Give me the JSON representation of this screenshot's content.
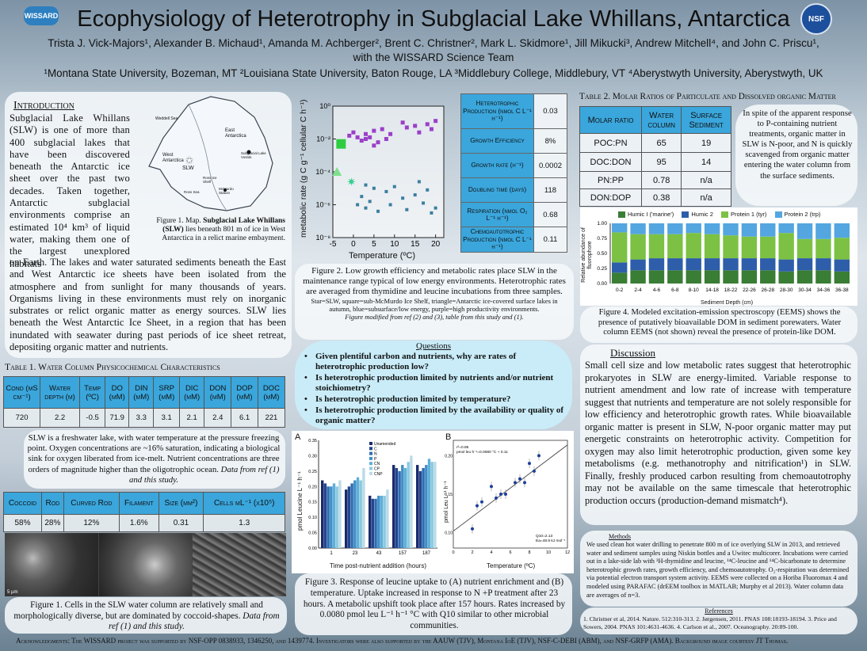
{
  "header": {
    "title": "Ecophysiology of Heterotrophy in Subglacial Lake Whillans, Antarctica",
    "authors_line1": "Trista J. Vick-Majors¹, Alexander B. Michaud¹, Amanda M. Achberger², Brent C. Christner², Mark L. Skidmore¹, Jill Mikucki³, Andrew Mitchell⁴, and John C. Priscu¹,",
    "authors_line2": "with the WISSARD Science Team",
    "affiliations": "¹Montana State University, Bozeman, MT ²Louisiana State University, Baton Rouge, LA ³Middlebury College, Middlebury, VT ⁴Aberystwyth University, Aberystwyth, UK",
    "logo_left": "WISSARD",
    "logo_right": "NSF"
  },
  "intro": {
    "heading": "Introduction",
    "p1": "Subglacial Lake Whillans (SLW) is one of more than 400 subglacial lakes that have been discovered beneath the Antarctic ice sheet over the past two decades. Taken together, Antarctic subglacial environments comprise an estimated 10⁴ km³ of liquid water, making them one of the largest unexplored habitats",
    "p2": "on Earth. The lakes and water saturated sediments beneath the East and West Antarctic ice sheets have been isolated from the atmosphere and from sunlight for many thousands of years. Organisms living in these environments must rely on inorganic substrates or relict organic matter as energy sources. SLW lies beneath the West Antarctic Ice Sheet, in a region that has been inundated with seawater during past periods of ice sheet retreat, depositing organic matter and nutrients."
  },
  "map": {
    "labels": [
      "Weddell Sea",
      "East Antarctica",
      "West Antarctica",
      "SLW",
      "Subglacial Lake Vostok",
      "Ross Ice Shelf",
      "McMurdo Station",
      "Ross Sea"
    ],
    "caption_prefix": "Figure 1. Map. ",
    "caption_bold": "Subglacial Lake Whillans (SLW)",
    "caption_rest": " lies beneath 801 m of ice in West Antarctica in a relict marine embayment."
  },
  "table1": {
    "title": "Table 1. Water Column Physicochemical Characteristics",
    "headers": [
      "Cond (µS cm⁻¹)",
      "Water depth (m)",
      "Temp (ºC)",
      "DO (µM)",
      "DIN (µM)",
      "SRP (µM)",
      "DIC (mM)",
      "DON (µM)",
      "DOP (µM)",
      "DOC (µM)"
    ],
    "values": [
      "720",
      "2.2",
      "-0.5",
      "71.9",
      "3.3",
      "3.1",
      "2.1",
      "2.4",
      "6.1",
      "221"
    ],
    "note": "SLW is a freshwater lake, with water temperature at the pressure freezing point. Oxygen concentrations are ~16% saturation, indicating a biological sink for oxygen liberated from ice-melt. Nutrient concentrations are three orders of magnitude higher than the oligotrophic ocean.",
    "note_italic": "Data from ref (1) and this study."
  },
  "cells_table": {
    "headers": [
      "Coccoid",
      "Rod",
      "Curved Rod",
      "Filament",
      "Size (µm²)",
      "Cells mL⁻¹ (x10⁵)"
    ],
    "values": [
      "58%",
      "28%",
      "12%",
      "1.6%",
      "0.31",
      "1.3"
    ]
  },
  "micrograph": {
    "scale": "5 µm",
    "caption": "Figure 1. Cells in the SLW water column are relatively small and morphologically diverse, but are dominated by coccoid-shapes.",
    "caption_italic": "Data from ref (1) and this study."
  },
  "fig2": {
    "ylabel": "metabolic rate (g C g⁻¹ cellular C h⁻¹)",
    "xlabel": "Temperature (ºC)",
    "yticks": [
      "10⁰",
      "10⁻²",
      "10⁻⁴",
      "10⁻⁶",
      "10⁻⁸"
    ],
    "xticks": [
      "-5",
      "0",
      "5",
      "10",
      "15",
      "20"
    ],
    "caption": "Figure 2. Low growth efficiency and metabolic rates place SLW in the maintenance range typical of low energy environments. Heterotrophic rates are averaged from thymidine and leucine incubations from three samples.",
    "caption_small": "Star=SLW, square=sub-McMurdo Ice Shelf, triangle=Antarctic ice-covered surface lakes in autumn, blue=subsurface/low energy, purple=high productivity environments.",
    "caption_italic": "Figure modified from ref (2) and (3), table from this study and (1)."
  },
  "rates": [
    {
      "label": "Heterotrophic Production (nmol C L⁻¹ h⁻¹)",
      "value": "0.03"
    },
    {
      "label": "Growth Efficiency",
      "value": "8%"
    },
    {
      "label": "Growth rate (h⁻¹)",
      "value": "0.0002"
    },
    {
      "label": "Doubling time (days)",
      "value": "118"
    },
    {
      "label": "Respiration (nmol O₂ L⁻¹ h⁻¹)",
      "value": "0.68"
    },
    {
      "label": "Chemoautotrophic Production (nmol C L⁻¹ h⁻¹)",
      "value": "0.11"
    }
  ],
  "questions": {
    "heading": "Questions",
    "items": [
      "Given plentiful carbon and nutrients, why are rates of heterotrophic production low?",
      "Is heterotrophic production limited by nutrients and/or nutrient stoichiometry?",
      "Is heterotrophic production limited by temperature?",
      "Is heterotrophic production limited by the availability or quality of organic matter?"
    ]
  },
  "fig3": {
    "a_label": "A",
    "b_label": "B",
    "a_ylabel": "pmol Leucine L⁻¹ h⁻¹",
    "a_xlabel": "Time post-nutrient addition (hours)",
    "a_legend": [
      "Unamended",
      "C",
      "N",
      "P",
      "CN",
      "CP",
      "CNP"
    ],
    "a_xticks": [
      "1",
      "23",
      "43",
      "157",
      "187"
    ],
    "a_yticks": [
      "0.00",
      "0.05",
      "0.10",
      "0.15",
      "0.20",
      "0.25",
      "0.30",
      "0.35"
    ],
    "b_ylabel": "pmol Leu L⁻¹ h⁻¹",
    "b_xlabel": "Temperature (ºC)",
    "b_yticks": [
      "0.10",
      "0.15",
      "0.20"
    ],
    "b_xticks": [
      "0",
      "2",
      "4",
      "6",
      "8",
      "10",
      "12"
    ],
    "b_ann1": "r²=0.85",
    "b_ann2": "pmol leu h⁻¹=0.0080 °C + 0.11",
    "b_ann3": "Q10=2.13",
    "b_ann4": "Ea=48.9 kJ mol⁻¹",
    "caption": "Figure 3. Response of leucine uptake to (A) nutrient enrichment and (B) temperature. Uptake increased in response to N +P treatment after 23 hours. A metabolic upshift took place after 157 hours. Rates increased by 0.0080 pmol leu L⁻¹ h⁻¹ °C with Q10 similar to other microbial communities."
  },
  "table2": {
    "title": "Table 2. Molar Ratios of Particulate and Dissolved organic Matter",
    "headers": [
      "Molar ratio",
      "Water column",
      "Surface Sediment"
    ],
    "rows": [
      [
        "POC:PN",
        "65",
        "19"
      ],
      [
        "DOC:DON",
        "95",
        "14"
      ],
      [
        "PN:PP",
        "0.78",
        "n/a"
      ],
      [
        "DON:DOP",
        "0.38",
        "n/a"
      ]
    ],
    "side_note": "In spite of the apparent response to P-containing nutrient treatments, organic matter in SLW is N-poor, and N is quickly scavenged from organic matter entering the water column from the surface sediments."
  },
  "fig4": {
    "legend": [
      "Humic I ('marine')",
      "Humic 2",
      "Protein 1 (tyr)",
      "Protein 2 (trp)"
    ],
    "ylabel": "Relative abundance of fluorophore",
    "xlabel": "Sediment Depth (cm)",
    "yticks": [
      "1.00",
      "0.75",
      "0.50",
      "0.25",
      "0.00"
    ],
    "caption": "Figure 4. Modeled excitation-emission spectroscopy (EEMS) shows the presence of putatively bioavailable DOM in sediment porewaters. Water column EEMS (not shown) reveal the presence of protein-like DOM."
  },
  "discussion": {
    "heading": "Discussion",
    "text": "Small cell size and low metabolic rates suggest that heterotrophic prokaryotes in SLW are energy-limited. Variable response to nutrient amendment and low rate of increase with temperature suggest that nutrients and temperature are not solely responsible for low efficiency and heterotrophic growth rates. While bioavailable organic matter is present in SLW, N-poor organic matter may put energetic constraints on heterotrophic activity. Competition for oxygen may also limit heterotrophic production, given some key metabolisms (e.g. methanotrophy and nitrification¹) in SLW. Finally, freshly produced carbon resulting from chemoautotrophy may not be available on the same timescale that heterotrophic production occurs (production-demand mismatch⁴)."
  },
  "methods": {
    "heading": "Methods",
    "text": "We used clean hot water drilling to penetrate 800 m of ice overlying SLW in 2013, and retrieved water and sediment samples using Niskin bottles and a Uwitec multicorer. Incubations were carried out in a lake-side lab with ³H-thymidine and leucine, ¹⁴C-leucine and ¹⁴C-bicarbonate to determine heterotrophic growth rates, growth efficiency, and chemoautotrophy. O₂-respiration was determined via potential electron transport system activity. EEMS were collected on a Horiba Fluoromax 4 and modeled using PARAFAC (drEEM toolbox in MATLAB; Murphy et al 2013). Water column data are averages of n=3."
  },
  "references": {
    "heading": "References",
    "text": "1. Christner et al, 2014. Nature. 512:310-313. 2. Jørgensen, 2011. PNAS 108:18193-18194. 3. Price and Sowers, 2004. PNAS 101:4631-4636. 4. Carlson et al., 2007. Oceanography. 20:89-100."
  },
  "ack": "Acknowledgments: The WISSARD project was supported by NSF-OPP 0838933, 1346250, and 1439774. Investigators were also supported by the AAUW (TJV), Montana IoE (TJV), NSF-C-DEBI (ABM), and NSF-GRFP (AMA). Background image courtesy JT Thomas.",
  "colors": {
    "blue_header": "#3aa6dc",
    "humic1": "#3a7d34",
    "humic2": "#2e5eaa",
    "protein1": "#7cc143",
    "protein2": "#53a6e0",
    "purple": "#9b3fc9",
    "teal": "#3b7ea0",
    "green": "#2ecc40"
  },
  "chart_data": [
    {
      "type": "bar",
      "name": "fig4",
      "categories": [
        "0-2",
        "2-4",
        "4-6",
        "6-8",
        "8-10",
        "14-18",
        "18-22",
        "22-26",
        "26-28",
        "28-30",
        "30-34",
        "34-36",
        "36-38"
      ],
      "ylim": [
        0,
        1
      ],
      "series": [
        {
          "name": "Humic I ('marine')",
          "values": [
            0.18,
            0.22,
            0.22,
            0.22,
            0.22,
            0.22,
            0.22,
            0.22,
            0.22,
            0.2,
            0.22,
            0.22,
            0.2
          ]
        },
        {
          "name": "Humic 2",
          "values": [
            0.17,
            0.18,
            0.2,
            0.2,
            0.2,
            0.2,
            0.2,
            0.2,
            0.2,
            0.2,
            0.2,
            0.2,
            0.2
          ]
        },
        {
          "name": "Protein 1 (tyr)",
          "values": [
            0.5,
            0.42,
            0.4,
            0.4,
            0.42,
            0.4,
            0.38,
            0.36,
            0.36,
            0.44,
            0.32,
            0.32,
            0.36
          ]
        },
        {
          "name": "Protein 2 (trp)",
          "values": [
            0.15,
            0.18,
            0.18,
            0.18,
            0.16,
            0.18,
            0.2,
            0.22,
            0.22,
            0.16,
            0.26,
            0.26,
            0.24
          ]
        }
      ]
    },
    {
      "type": "scatter",
      "name": "fig2",
      "xlim": [
        -5,
        22
      ],
      "ylim_log10": [
        -8,
        0
      ],
      "series": [
        {
          "name": "purple",
          "points": [
            [
              -1,
              -1.8
            ],
            [
              0,
              -1.6
            ],
            [
              1,
              -1.9
            ],
            [
              2,
              -2.1
            ],
            [
              3,
              -1.7
            ],
            [
              4,
              -1.9
            ],
            [
              5,
              -2.4
            ],
            [
              5,
              -1.5
            ],
            [
              6,
              -2.2
            ],
            [
              7,
              -1.4
            ],
            [
              8,
              -2.0
            ],
            [
              9,
              -1.7
            ],
            [
              12,
              -1.0
            ],
            [
              13,
              -1.3
            ],
            [
              15,
              -1.2
            ],
            [
              16,
              -1.6
            ],
            [
              18,
              -1.1
            ],
            [
              19,
              -1.4
            ],
            [
              20,
              -0.9
            ],
            [
              3,
              -2.0
            ]
          ]
        },
        {
          "name": "blue",
          "points": [
            [
              1,
              -6.0
            ],
            [
              2,
              -5.5
            ],
            [
              3,
              -6.2
            ],
            [
              3,
              -4.8
            ],
            [
              4,
              -5.8
            ],
            [
              5,
              -5.0
            ],
            [
              6,
              -6.4
            ],
            [
              8,
              -5.2
            ],
            [
              9,
              -6.0
            ],
            [
              10,
              -4.9
            ],
            [
              12,
              -5.6
            ],
            [
              13,
              -6.3
            ],
            [
              15,
              -5.4
            ],
            [
              16,
              -4.6
            ],
            [
              17,
              -5.9
            ],
            [
              18,
              -5.1
            ],
            [
              19,
              -6.5
            ],
            [
              20,
              -6.2
            ]
          ]
        },
        {
          "name": "square",
          "points": [
            [
              -3,
              -2.3
            ]
          ]
        },
        {
          "name": "triangle",
          "points": [
            [
              -4,
              -4.0
            ]
          ]
        },
        {
          "name": "star",
          "points": [
            [
              -0.5,
              -4.6
            ]
          ]
        }
      ]
    },
    {
      "type": "bar",
      "name": "fig3a",
      "categories": [
        "1",
        "23",
        "43",
        "157",
        "187"
      ],
      "series_names": [
        "Unamended",
        "C",
        "N",
        "P",
        "CN",
        "CP",
        "CNP"
      ],
      "values": [
        [
          0.22,
          0.21,
          0.2,
          0.2,
          0.21,
          0.2,
          0.22
        ],
        [
          0.19,
          0.2,
          0.21,
          0.22,
          0.23,
          0.22,
          0.26
        ],
        [
          0.17,
          0.16,
          0.16,
          0.17,
          0.17,
          0.17,
          0.19
        ],
        [
          0.27,
          0.26,
          0.25,
          0.27,
          0.26,
          0.28,
          0.3
        ],
        [
          0.27,
          0.25,
          0.26,
          0.27,
          0.29,
          0.28,
          0.28
        ]
      ],
      "ylim": [
        0,
        0.35
      ]
    },
    {
      "type": "scatter",
      "name": "fig3b",
      "xlim": [
        0,
        12
      ],
      "ylim": [
        0.08,
        0.22
      ],
      "points": [
        [
          2,
          0.105
        ],
        [
          2.5,
          0.135
        ],
        [
          3,
          0.14
        ],
        [
          4,
          0.16
        ],
        [
          4.5,
          0.145
        ],
        [
          5,
          0.15
        ],
        [
          5.5,
          0.15
        ],
        [
          6.5,
          0.165
        ],
        [
          7,
          0.17
        ],
        [
          7.5,
          0.165
        ],
        [
          8,
          0.19
        ],
        [
          8.5,
          0.18
        ],
        [
          9,
          0.2
        ]
      ]
    }
  ]
}
